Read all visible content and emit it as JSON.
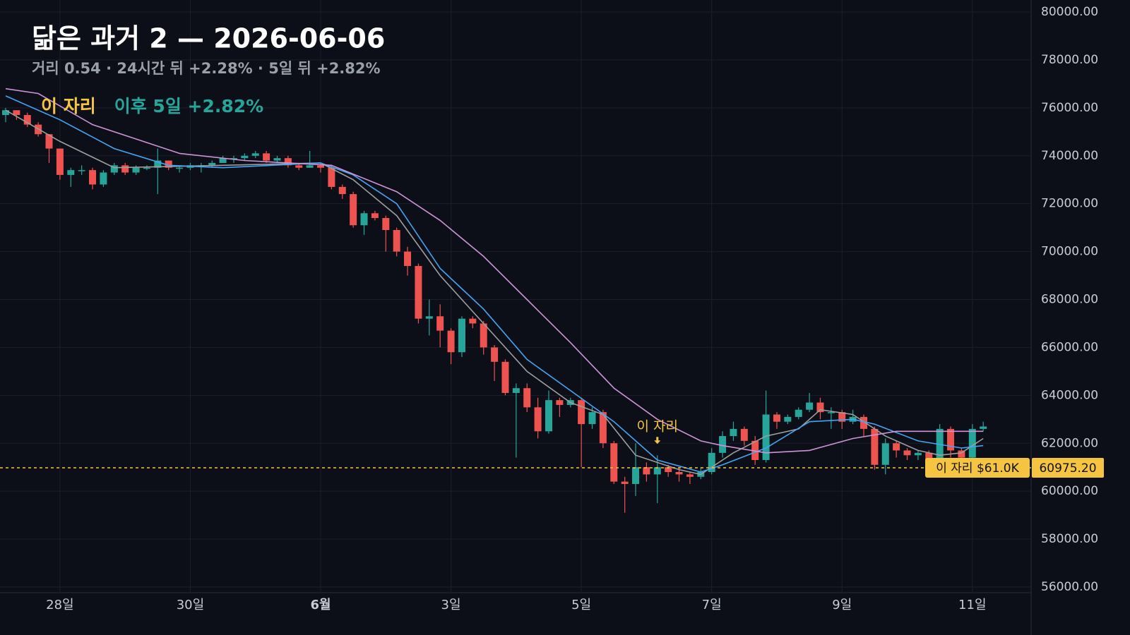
{
  "chart_data": {
    "type": "candlestick",
    "title": "닮은 과거 2 — 2026-06-06",
    "subtitle": "거리 0.54 · 24시간 뒤 +2.28% · 5일 뒤 +2.82%",
    "legend": [
      {
        "text": "이 자리",
        "color": "#f5c542"
      },
      {
        "text": "이후 5일 +2.82%",
        "color": "#26a69a"
      }
    ],
    "up_color": "#26a69a",
    "down_color": "#ef5350",
    "open": [
      75700,
      75900,
      75700,
      75300,
      74900,
      74300,
      73200,
      73400,
      73400,
      72800,
      73300,
      73600,
      73300,
      73500,
      73500,
      73800,
      73500,
      73500,
      73600,
      73600,
      73700,
      73900,
      73900,
      74000,
      74100,
      73800,
      73900,
      73600,
      73500,
      73600,
      73500,
      72700,
      72400,
      71100,
      71600,
      71400,
      70900,
      70000,
      69400,
      67200,
      67300,
      66700,
      65800,
      67200,
      67000,
      66000,
      65400,
      64100,
      64300,
      63500,
      62500,
      63800,
      63600,
      63800,
      62800,
      63300,
      62000,
      60400,
      60300,
      61000,
      60700,
      61000,
      60800,
      60700,
      60600,
      60800,
      61600,
      62300,
      62600,
      62100,
      61300,
      63200,
      62900,
      63100,
      63400,
      63700,
      63300,
      63300,
      62900,
      63100,
      62600,
      61100,
      62000,
      61700,
      61500,
      61600,
      61000,
      62600,
      61700,
      61400,
      62600
    ],
    "high": [
      76000,
      75900,
      75800,
      75400,
      74900,
      74300,
      73500,
      73600,
      73500,
      73400,
      73700,
      73700,
      73600,
      73600,
      74300,
      73800,
      73600,
      73700,
      73700,
      73800,
      74000,
      74000,
      74100,
      74200,
      74200,
      74000,
      74000,
      73700,
      74200,
      73700,
      73600,
      72800,
      72500,
      71700,
      71700,
      71500,
      71000,
      70200,
      69500,
      68000,
      67800,
      66800,
      67300,
      67300,
      67100,
      66100,
      65500,
      64500,
      64500,
      63900,
      64200,
      63900,
      63900,
      63900,
      63500,
      63400,
      62100,
      60600,
      62000,
      61200,
      61500,
      61100,
      61000,
      60800,
      61000,
      61800,
      62500,
      62900,
      62700,
      62300,
      64200,
      63300,
      63200,
      63500,
      64100,
      63900,
      63500,
      63400,
      63400,
      63200,
      62700,
      62200,
      62100,
      61800,
      61700,
      61700,
      62800,
      62700,
      61800,
      62800,
      62900
    ],
    "low": [
      75400,
      75500,
      75200,
      74800,
      73700,
      73000,
      72700,
      73200,
      72600,
      72700,
      73200,
      73200,
      73200,
      73400,
      72400,
      73400,
      73300,
      73400,
      73300,
      73500,
      73700,
      73700,
      73800,
      73900,
      73700,
      73700,
      73500,
      73400,
      73500,
      73300,
      72600,
      72200,
      71000,
      70700,
      71300,
      70000,
      69800,
      69000,
      67000,
      66500,
      66000,
      65300,
      65600,
      66800,
      65700,
      64600,
      64000,
      61400,
      63300,
      62200,
      62400,
      63100,
      63500,
      61000,
      62600,
      61800,
      60300,
      59100,
      59800,
      60400,
      59500,
      60600,
      60400,
      60300,
      60500,
      60700,
      61400,
      62100,
      61900,
      61100,
      61200,
      62600,
      62800,
      63000,
      63300,
      63000,
      62600,
      62600,
      62800,
      62300,
      60900,
      60700,
      61400,
      61300,
      61300,
      60900,
      60900,
      61400,
      61300,
      61300,
      62500
    ],
    "close": [
      75900,
      75700,
      75300,
      74900,
      74300,
      73200,
      73400,
      73400,
      72800,
      73300,
      73600,
      73300,
      73500,
      73500,
      73800,
      73500,
      73500,
      73600,
      73600,
      73700,
      73900,
      73900,
      74000,
      74100,
      73800,
      73900,
      73600,
      73500,
      73600,
      73500,
      72700,
      72400,
      71100,
      71600,
      71400,
      70900,
      70000,
      69400,
      67200,
      67300,
      66700,
      65800,
      67200,
      67000,
      66000,
      65400,
      64100,
      64300,
      63500,
      62500,
      63800,
      63600,
      63800,
      62800,
      63300,
      62000,
      60400,
      60300,
      61000,
      60700,
      61000,
      60800,
      60700,
      60600,
      60800,
      61600,
      62300,
      62600,
      62100,
      61300,
      63200,
      62900,
      63100,
      63400,
      63700,
      63300,
      63300,
      62900,
      63100,
      62600,
      61100,
      62000,
      61700,
      61500,
      61600,
      61000,
      62600,
      61700,
      61400,
      62600,
      62700
    ],
    "ma_lines": [
      {
        "color": "#9e9e9e",
        "x": [
          0,
          5,
          10,
          20,
          29,
          32,
          36,
          40,
          44,
          48,
          52,
          55,
          58,
          62,
          64,
          67,
          70,
          73,
          75,
          78,
          81,
          84,
          86,
          88,
          90
        ],
        "values": [
          75900,
          74600,
          73500,
          73600,
          73700,
          73000,
          71500,
          69000,
          67000,
          65000,
          63700,
          63200,
          61500,
          60900,
          60700,
          61600,
          62300,
          62600,
          63400,
          63200,
          62300,
          61700,
          61500,
          61600,
          62200
        ]
      },
      {
        "color": "#42a5f5",
        "x": [
          0,
          5,
          10,
          15,
          20,
          29,
          32,
          36,
          40,
          44,
          48,
          52,
          56,
          60,
          64,
          66,
          70,
          74,
          78,
          80,
          84,
          88,
          90
        ],
        "values": [
          76500,
          75500,
          74300,
          73600,
          73500,
          73700,
          73200,
          72000,
          69300,
          67600,
          65500,
          64200,
          62900,
          61300,
          60800,
          61100,
          61800,
          62900,
          63000,
          62800,
          62100,
          61800,
          61900
        ]
      },
      {
        "color": "#ce93d8",
        "x": [
          0,
          3,
          8,
          12,
          16,
          22,
          26,
          30,
          36,
          40,
          44,
          48,
          52,
          56,
          60,
          64,
          66,
          70,
          74,
          78,
          82,
          90
        ],
        "values": [
          76800,
          76600,
          75300,
          74700,
          74100,
          73800,
          73700,
          73600,
          72500,
          71300,
          69800,
          68000,
          66200,
          64300,
          63000,
          62100,
          61900,
          61600,
          61700,
          62200,
          62500,
          62500
        ]
      }
    ],
    "marker": {
      "x": 60,
      "text": "이 자리"
    },
    "price_line": {
      "value": 60975.2,
      "label": "60975.20",
      "tag": "이 자리 $61.0K",
      "color": "#f5c542"
    },
    "xlim": [
      -0.52,
      94.41
    ],
    "xticks": [
      {
        "value": 5,
        "label": "28일"
      },
      {
        "value": 17,
        "label": "30일"
      },
      {
        "value": 29,
        "label": "6월",
        "bold": true
      },
      {
        "value": 41,
        "label": "3일"
      },
      {
        "value": 53,
        "label": "5일"
      },
      {
        "value": 65,
        "label": "7일"
      },
      {
        "value": 77,
        "label": "9일"
      },
      {
        "value": 89,
        "label": "11일"
      }
    ],
    "ylim": [
      56000,
      80000
    ],
    "yticks": [
      {
        "value": 56000,
        "label": "56000.00"
      },
      {
        "value": 58000,
        "label": "58000.00"
      },
      {
        "value": 60000,
        "label": "60000.00"
      },
      {
        "value": 62000,
        "label": "62000.00"
      },
      {
        "value": 64000,
        "label": "64000.00"
      },
      {
        "value": 66000,
        "label": "66000.00"
      },
      {
        "value": 68000,
        "label": "68000.00"
      },
      {
        "value": 70000,
        "label": "70000.00"
      },
      {
        "value": 72000,
        "label": "72000.00"
      },
      {
        "value": 74000,
        "label": "74000.00"
      },
      {
        "value": 76000,
        "label": "76000.00"
      },
      {
        "value": 78000,
        "label": "78000.00"
      },
      {
        "value": 80000,
        "label": "80000.00"
      }
    ],
    "grid": true
  }
}
